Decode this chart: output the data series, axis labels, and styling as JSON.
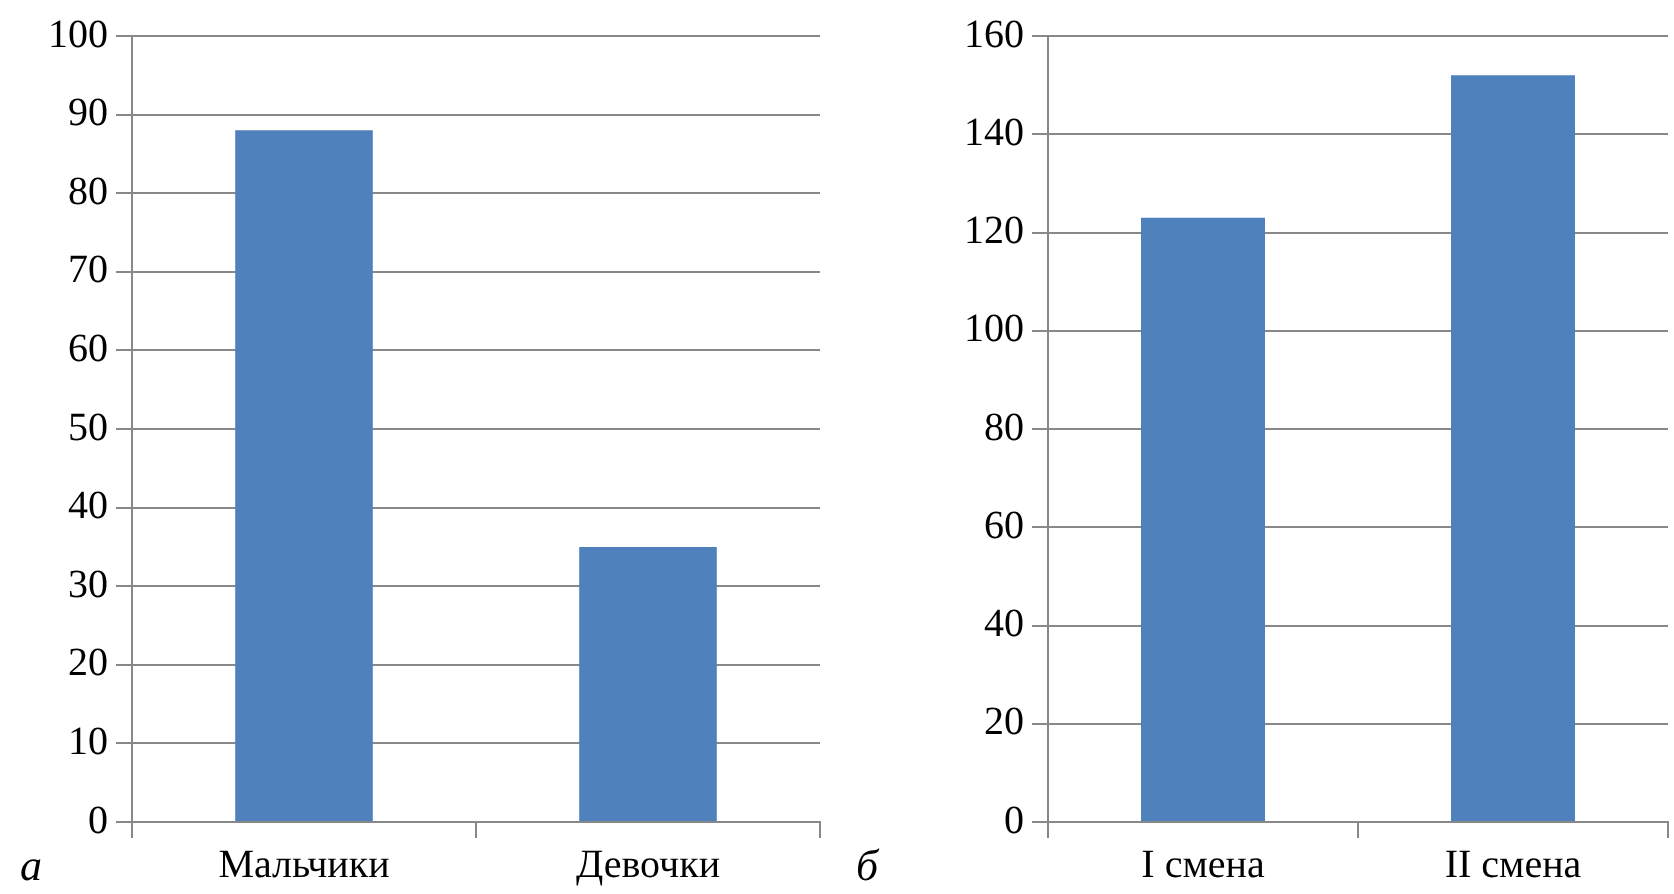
{
  "chart_data": [
    {
      "type": "bar",
      "categories": [
        "Мальчики",
        "Девочки"
      ],
      "values": [
        88,
        35
      ],
      "color": "#4f81bd",
      "ylim": [
        0,
        100
      ],
      "yticks": [
        0,
        10,
        20,
        30,
        40,
        50,
        60,
        70,
        80,
        90,
        100
      ],
      "grid": "y",
      "legend": false,
      "annotations": [
        "а"
      ]
    },
    {
      "type": "bar",
      "categories": [
        "I смена",
        "II смена"
      ],
      "values": [
        123,
        152
      ],
      "color": "#4f81bd",
      "ylim": [
        0,
        160
      ],
      "yticks": [
        0,
        20,
        40,
        60,
        80,
        100,
        120,
        140,
        160
      ],
      "grid": "y",
      "legend": false,
      "annotations": [
        "б"
      ]
    }
  ]
}
